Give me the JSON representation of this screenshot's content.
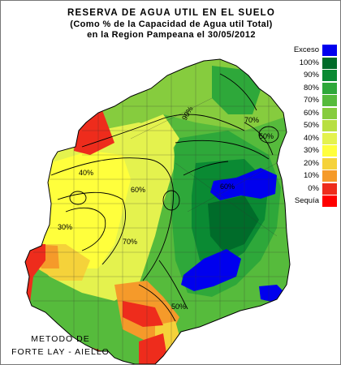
{
  "title": {
    "line1": "RESERVA DE AGUA UTIL EN EL SUELO",
    "line2": "(Como %  de la Capacidad de  Agua util Total)",
    "line3": "en la Region Pampeana el 30/05/2012"
  },
  "legend": [
    {
      "label": "Exceso",
      "color": "#0000ee"
    },
    {
      "label": "100%",
      "color": "#006c2a"
    },
    {
      "label": "90%",
      "color": "#0a8a33"
    },
    {
      "label": "80%",
      "color": "#2ea83a"
    },
    {
      "label": "70%",
      "color": "#56bb3c"
    },
    {
      "label": "60%",
      "color": "#86cc3e"
    },
    {
      "label": "50%",
      "color": "#b8df42"
    },
    {
      "label": "40%",
      "color": "#e4f24e"
    },
    {
      "label": "30%",
      "color": "#ffff3c"
    },
    {
      "label": "20%",
      "color": "#f5d23a"
    },
    {
      "label": "10%",
      "color": "#f59a2a"
    },
    {
      "label": "0%",
      "color": "#ee2c1c"
    },
    {
      "label": "Sequía",
      "color": "#ff0000"
    }
  ],
  "method": {
    "line1": "METODO DE",
    "line2": "FORTE LAY - AIELLO"
  },
  "contour_labels": [
    "90%",
    "70%",
    "40%",
    "30%",
    "60%",
    "70%",
    "60%",
    "50%",
    "50%"
  ]
}
